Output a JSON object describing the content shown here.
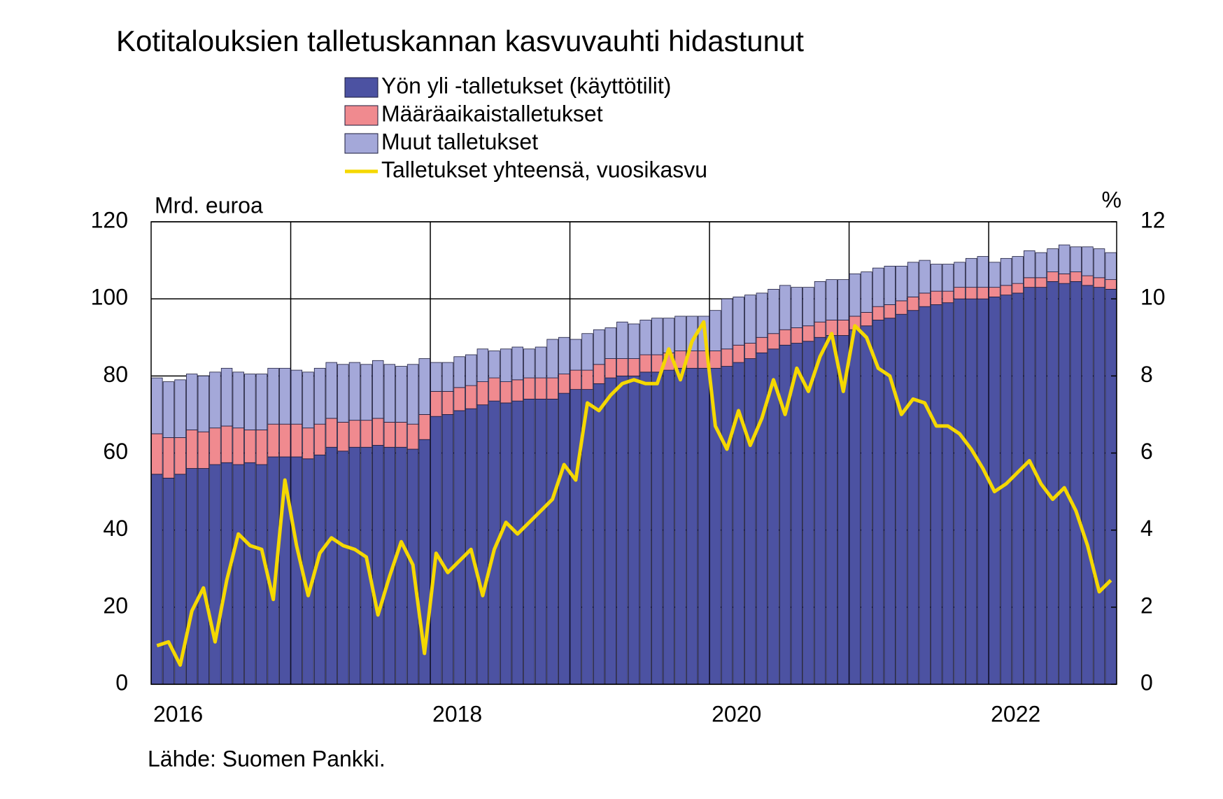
{
  "chart_data": {
    "type": "bar",
    "stacked": true,
    "title": "Kotitalouksien talletuskannan kasvuvauhti hidastunut",
    "y_label": "Mrd. euroa",
    "y2_label": "%",
    "source": "Lähde: Suomen Pankki.",
    "categories": [
      "2016",
      null,
      null,
      null,
      null,
      null,
      null,
      null,
      null,
      null,
      null,
      null,
      null,
      null,
      null,
      null,
      null,
      null,
      null,
      null,
      null,
      null,
      null,
      null,
      "2018",
      null,
      null,
      null,
      null,
      null,
      null,
      null,
      null,
      null,
      null,
      null,
      null,
      null,
      null,
      null,
      null,
      null,
      null,
      null,
      null,
      null,
      null,
      null,
      "2020",
      null,
      null,
      null,
      null,
      null,
      null,
      null,
      null,
      null,
      null,
      null,
      null,
      null,
      null,
      null,
      null,
      null,
      null,
      null,
      null,
      null,
      null,
      null,
      "2022",
      null,
      null,
      null,
      null,
      null,
      null,
      null,
      null,
      null,
      null
    ],
    "ylim": [
      0,
      120
    ],
    "yticks": [
      0,
      20,
      40,
      60,
      80,
      100,
      120
    ],
    "y2lim": [
      0,
      12
    ],
    "y2ticks": [
      0,
      2,
      4,
      6,
      8,
      10,
      12
    ],
    "grid": true,
    "series": [
      {
        "name": "Yön yli -talletukset (käyttötilit)",
        "type": "bar",
        "color": "#4c52a2",
        "values": [
          54.5,
          53.5,
          54.5,
          56,
          56,
          57,
          57.5,
          57,
          57.5,
          57,
          59,
          59,
          59,
          58.5,
          59.5,
          61.5,
          60.5,
          61.5,
          61.5,
          62,
          61.5,
          61.5,
          61,
          63.5,
          69.5,
          70,
          71,
          71.5,
          72.5,
          73.5,
          73,
          73.5,
          74,
          74,
          74,
          75.5,
          76.5,
          76.5,
          78,
          79.5,
          80,
          80,
          81,
          81,
          81.5,
          82,
          82,
          82,
          82,
          82.5,
          83.5,
          84.5,
          86,
          87,
          88,
          88.5,
          89,
          90,
          90.5,
          90.5,
          92,
          93,
          94.5,
          95,
          96,
          97,
          98,
          98.5,
          99,
          100,
          100,
          100,
          100.5,
          101,
          101.5,
          103,
          103,
          104.5,
          104,
          104.5,
          103.5,
          103,
          102.5
        ]
      },
      {
        "name": "Määräaikaistalletukset",
        "type": "bar",
        "color": "#f08a8f",
        "values": [
          10.5,
          10.5,
          9.5,
          10,
          9.5,
          9.5,
          9.5,
          9.5,
          8.5,
          9,
          8.5,
          8.5,
          8.5,
          8,
          8,
          7.5,
          7.5,
          7,
          7,
          7,
          6.5,
          6.5,
          6.5,
          6.5,
          6.5,
          6,
          6,
          6,
          6,
          6,
          5.5,
          5.5,
          5.5,
          5.5,
          5.5,
          5,
          5,
          5,
          5,
          5,
          4.5,
          4.5,
          4.5,
          4.5,
          4.5,
          4.5,
          4.5,
          4.5,
          4.5,
          4.5,
          4.5,
          4,
          4,
          4,
          4,
          4,
          4,
          4,
          4,
          4,
          3.5,
          3.5,
          3.5,
          3.5,
          3.5,
          3.5,
          3.5,
          3.5,
          3,
          3,
          3,
          3,
          2.5,
          2.5,
          2.5,
          2.5,
          2.5,
          2.5,
          2.5,
          2.5,
          2.5,
          2.5,
          2.5
        ]
      },
      {
        "name": "Muut talletukset",
        "type": "bar",
        "color": "#a4a8d9",
        "values": [
          14.5,
          14.5,
          15,
          14.5,
          14.5,
          14.5,
          15,
          14.5,
          14.5,
          14.5,
          14.5,
          14.5,
          14,
          14.5,
          14.5,
          14.5,
          15,
          15,
          14.5,
          15,
          15,
          14.5,
          15.5,
          14.5,
          7.5,
          7.5,
          8,
          8,
          8.5,
          7,
          8.5,
          8.5,
          7.5,
          8,
          10,
          9.5,
          8,
          9.5,
          9,
          8,
          9.5,
          9,
          9,
          9.5,
          9,
          9,
          9,
          9,
          10.5,
          13,
          12.5,
          12.5,
          11.5,
          11.5,
          11.5,
          10.5,
          10,
          10.5,
          10.5,
          10.5,
          11,
          10.5,
          10,
          10,
          9,
          9,
          8.5,
          7,
          7,
          6.5,
          7.5,
          8,
          6.5,
          7,
          7,
          7,
          6.5,
          6,
          7.5,
          6.5,
          7.5,
          7.5,
          7
        ]
      },
      {
        "name": "Talletukset yhteensä, vuosikasvu",
        "type": "line",
        "axis": "y2",
        "color": "#f5d800",
        "values": [
          1.0,
          1.1,
          0.5,
          1.9,
          2.5,
          1.1,
          2.7,
          3.9,
          3.6,
          3.5,
          2.2,
          5.3,
          3.6,
          2.3,
          3.4,
          3.8,
          3.6,
          3.5,
          3.3,
          1.8,
          2.8,
          3.7,
          3.1,
          0.8,
          3.4,
          2.9,
          3.2,
          3.5,
          2.3,
          3.5,
          4.2,
          3.9,
          4.2,
          4.5,
          4.8,
          5.7,
          5.3,
          7.3,
          7.1,
          7.5,
          7.8,
          7.9,
          7.8,
          7.8,
          8.7,
          7.9,
          8.9,
          9.4,
          6.7,
          6.1,
          7.1,
          6.2,
          6.9,
          7.9,
          7.0,
          8.2,
          7.6,
          8.5,
          9.1,
          7.6,
          9.3,
          9.0,
          8.2,
          8.0,
          7.0,
          7.4,
          7.3,
          6.7,
          6.7,
          6.5,
          6.1,
          5.6,
          5.0,
          5.2,
          5.5,
          5.8,
          5.2,
          4.8,
          5.1,
          4.5,
          3.6,
          2.4,
          2.7
        ]
      }
    ]
  }
}
